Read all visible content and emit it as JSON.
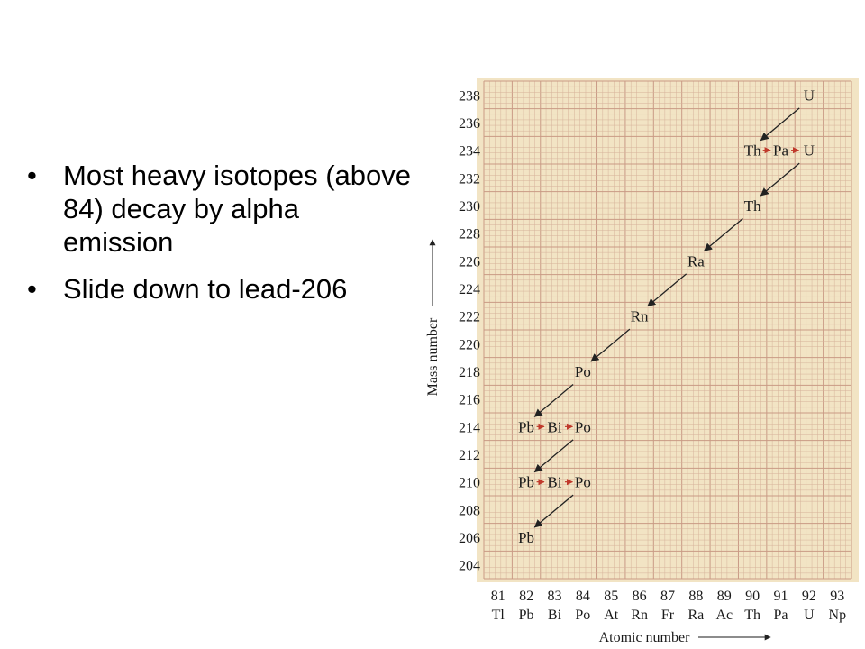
{
  "slide": {
    "bullets": [
      "Most heavy isotopes (above 84) decay by alpha emission",
      "Slide down to lead-206"
    ]
  },
  "colors": {
    "paper": "#f2e4c4",
    "grid": "#d6b29a",
    "grid_major": "#c99a85",
    "arrow_alpha": "#222222",
    "arrow_beta": "#c0392b",
    "text": "#1a1a1a"
  },
  "chart_data": {
    "type": "scatter",
    "title": "",
    "xlabel": "Atomic number",
    "ylabel": "Mass number",
    "xlim": [
      81,
      93
    ],
    "ylim": [
      204,
      238
    ],
    "grid": true,
    "x_ticks": [
      {
        "z": 81,
        "symbol": "Tl"
      },
      {
        "z": 82,
        "symbol": "Pb"
      },
      {
        "z": 83,
        "symbol": "Bi"
      },
      {
        "z": 84,
        "symbol": "Po"
      },
      {
        "z": 85,
        "symbol": "At"
      },
      {
        "z": 86,
        "symbol": "Rn"
      },
      {
        "z": 87,
        "symbol": "Fr"
      },
      {
        "z": 88,
        "symbol": "Ra"
      },
      {
        "z": 89,
        "symbol": "Ac"
      },
      {
        "z": 90,
        "symbol": "Th"
      },
      {
        "z": 91,
        "symbol": "Pa"
      },
      {
        "z": 92,
        "symbol": "U"
      },
      {
        "z": 93,
        "symbol": "Np"
      }
    ],
    "y_ticks": [
      238,
      236,
      234,
      232,
      230,
      228,
      226,
      224,
      222,
      220,
      218,
      216,
      214,
      212,
      210,
      208,
      206,
      204
    ],
    "nuclides": [
      {
        "symbol": "U",
        "z": 92,
        "a": 238
      },
      {
        "symbol": "Th",
        "z": 90,
        "a": 234
      },
      {
        "symbol": "Pa",
        "z": 91,
        "a": 234
      },
      {
        "symbol": "U",
        "z": 92,
        "a": 234
      },
      {
        "symbol": "Th",
        "z": 90,
        "a": 230
      },
      {
        "symbol": "Ra",
        "z": 88,
        "a": 226
      },
      {
        "symbol": "Rn",
        "z": 86,
        "a": 222
      },
      {
        "symbol": "Po",
        "z": 84,
        "a": 218
      },
      {
        "symbol": "Pb",
        "z": 82,
        "a": 214
      },
      {
        "symbol": "Bi",
        "z": 83,
        "a": 214
      },
      {
        "symbol": "Po",
        "z": 84,
        "a": 214
      },
      {
        "symbol": "Pb",
        "z": 82,
        "a": 210
      },
      {
        "symbol": "Bi",
        "z": 83,
        "a": 210
      },
      {
        "symbol": "Po",
        "z": 84,
        "a": 210
      },
      {
        "symbol": "Pb",
        "z": 82,
        "a": 206
      }
    ],
    "decays": [
      {
        "mode": "alpha",
        "from": [
          92,
          238
        ],
        "to": [
          90,
          234
        ]
      },
      {
        "mode": "beta",
        "from": [
          90,
          234
        ],
        "to": [
          91,
          234
        ]
      },
      {
        "mode": "beta",
        "from": [
          91,
          234
        ],
        "to": [
          92,
          234
        ]
      },
      {
        "mode": "alpha",
        "from": [
          92,
          234
        ],
        "to": [
          90,
          230
        ]
      },
      {
        "mode": "alpha",
        "from": [
          90,
          230
        ],
        "to": [
          88,
          226
        ]
      },
      {
        "mode": "alpha",
        "from": [
          88,
          226
        ],
        "to": [
          86,
          222
        ]
      },
      {
        "mode": "alpha",
        "from": [
          86,
          222
        ],
        "to": [
          84,
          218
        ]
      },
      {
        "mode": "alpha",
        "from": [
          84,
          218
        ],
        "to": [
          82,
          214
        ]
      },
      {
        "mode": "beta",
        "from": [
          82,
          214
        ],
        "to": [
          83,
          214
        ]
      },
      {
        "mode": "beta",
        "from": [
          83,
          214
        ],
        "to": [
          84,
          214
        ]
      },
      {
        "mode": "alpha",
        "from": [
          84,
          214
        ],
        "to": [
          82,
          210
        ]
      },
      {
        "mode": "beta",
        "from": [
          82,
          210
        ],
        "to": [
          83,
          210
        ]
      },
      {
        "mode": "beta",
        "from": [
          83,
          210
        ],
        "to": [
          84,
          210
        ]
      },
      {
        "mode": "alpha",
        "from": [
          84,
          210
        ],
        "to": [
          82,
          206
        ]
      }
    ]
  }
}
